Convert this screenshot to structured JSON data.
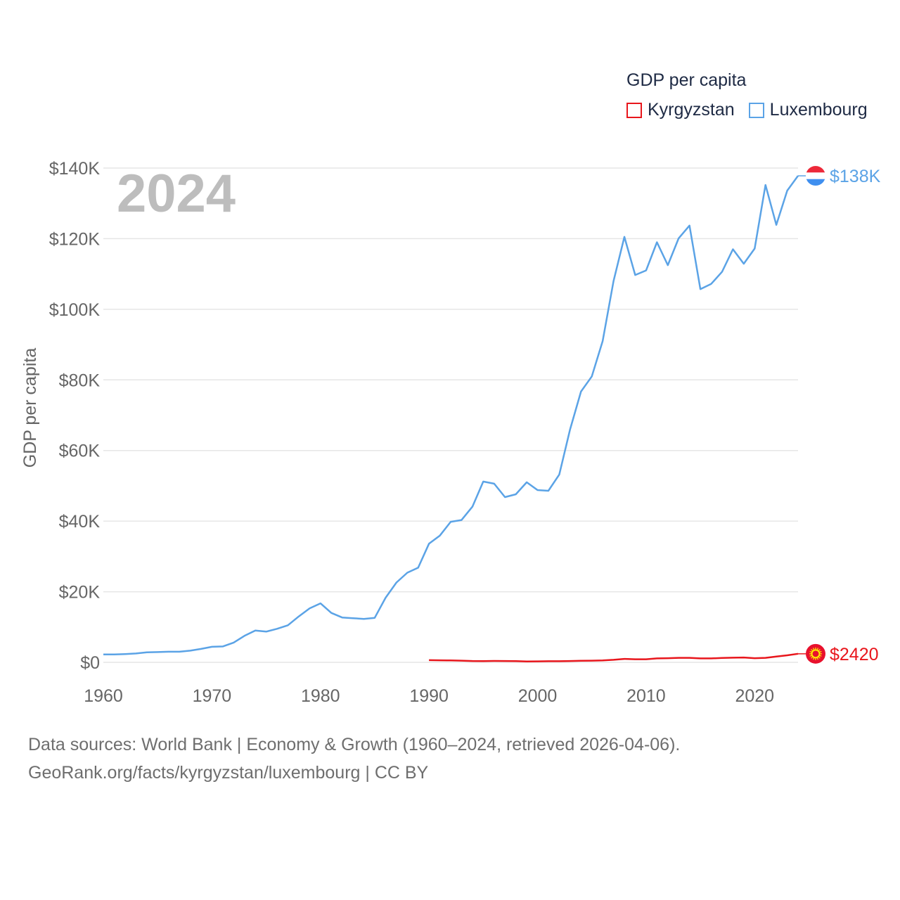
{
  "legend": {
    "title": "GDP per capita",
    "items": [
      {
        "label": "Kyrgyzstan",
        "color": "#e8161c"
      },
      {
        "label": "Luxembourg",
        "color": "#5ba3e6"
      }
    ]
  },
  "source": {
    "line1": "Data sources: World Bank | Economy & Growth (1960–2024, retrieved 2026-04-06).",
    "line2": "GeoRank.org/facts/kyrgyzstan/luxembourg | CC BY"
  },
  "chart_data": {
    "type": "line",
    "year_label": "2024",
    "ylabel": "GDP per capita",
    "xlim": [
      1960,
      2024
    ],
    "ylim": [
      0,
      140000
    ],
    "y_ticks": [
      0,
      20000,
      40000,
      60000,
      80000,
      100000,
      120000,
      140000
    ],
    "y_tick_labels": [
      "$0",
      "$20K",
      "$40K",
      "$60K",
      "$80K",
      "$100K",
      "$120K",
      "$140K"
    ],
    "x_ticks": [
      1960,
      1970,
      1980,
      1990,
      2000,
      2010,
      2020
    ],
    "x_tick_labels": [
      "1960",
      "1970",
      "1980",
      "1990",
      "2000",
      "2010",
      "2020"
    ],
    "series": [
      {
        "name": "Luxembourg",
        "color": "#5ba3e6",
        "end_label": "$138K",
        "x": [
          1960,
          1961,
          1962,
          1963,
          1964,
          1965,
          1966,
          1967,
          1968,
          1969,
          1970,
          1971,
          1972,
          1973,
          1974,
          1975,
          1976,
          1977,
          1978,
          1979,
          1980,
          1981,
          1982,
          1983,
          1984,
          1985,
          1986,
          1987,
          1988,
          1989,
          1990,
          1991,
          1992,
          1993,
          1994,
          1995,
          1996,
          1997,
          1998,
          1999,
          2000,
          2001,
          2002,
          2003,
          2004,
          2005,
          2006,
          2007,
          2008,
          2009,
          2010,
          2011,
          2012,
          2013,
          2014,
          2015,
          2016,
          2017,
          2018,
          2019,
          2020,
          2021,
          2022,
          2023,
          2024
        ],
        "values": [
          2240,
          2250,
          2350,
          2500,
          2850,
          2900,
          3000,
          3000,
          3300,
          3800,
          4400,
          4500,
          5600,
          7500,
          9000,
          8700,
          9500,
          10500,
          13000,
          15300,
          16700,
          14000,
          12700,
          12500,
          12300,
          12600,
          18300,
          22600,
          25400,
          26800,
          33600,
          35900,
          39800,
          40300,
          44100,
          51200,
          50600,
          46800,
          47600,
          51000,
          48800,
          48600,
          53200,
          66000,
          76700,
          81000,
          91000,
          108000,
          120500,
          109700,
          111000,
          119000,
          112500,
          120100,
          123700,
          105700,
          107200,
          110600,
          117000,
          112900,
          117200,
          135200,
          123900,
          133600,
          137800
        ]
      },
      {
        "name": "Kyrgyzstan",
        "color": "#e8161c",
        "end_label": "$2420",
        "x": [
          1990,
          1991,
          1992,
          1993,
          1994,
          1995,
          1996,
          1997,
          1998,
          1999,
          2000,
          2001,
          2002,
          2003,
          2004,
          2005,
          2006,
          2007,
          2008,
          2009,
          2010,
          2011,
          2012,
          2013,
          2014,
          2015,
          2016,
          2017,
          2018,
          2019,
          2020,
          2021,
          2022,
          2023,
          2024
        ],
        "values": [
          620,
          580,
          530,
          480,
          370,
          360,
          390,
          380,
          340,
          260,
          280,
          310,
          320,
          380,
          430,
          480,
          540,
          720,
          970,
          870,
          880,
          1120,
          1180,
          1280,
          1280,
          1120,
          1120,
          1240,
          1310,
          1370,
          1180,
          1280,
          1650,
          2000,
          2420
        ]
      }
    ]
  }
}
